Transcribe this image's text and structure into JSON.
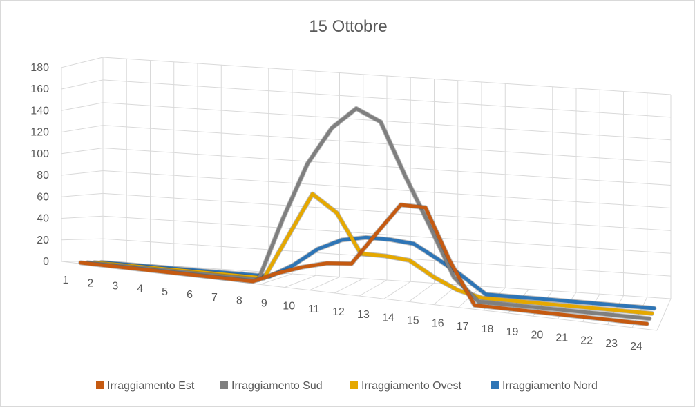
{
  "chart_data": {
    "type": "line",
    "title": "15 Ottobre",
    "x": [
      "1",
      "2",
      "3",
      "4",
      "5",
      "6",
      "7",
      "8",
      "9",
      "10",
      "11",
      "12",
      "13",
      "14",
      "15",
      "16",
      "17",
      "18",
      "19",
      "20",
      "21",
      "22",
      "23",
      "24"
    ],
    "y_ticks": [
      "0",
      "20",
      "40",
      "60",
      "80",
      "100",
      "120",
      "140",
      "160",
      "180"
    ],
    "ylim": [
      0,
      180
    ],
    "grid": true,
    "legend_position": "bottom",
    "series": [
      {
        "name": "Irraggiamento Est",
        "color": "#c55a11",
        "values": [
          0,
          0,
          0,
          0,
          0,
          0,
          0,
          0,
          10,
          18,
          24,
          26,
          56,
          85,
          85,
          38,
          0,
          0,
          0,
          0,
          0,
          0,
          0,
          0
        ]
      },
      {
        "name": "Irraggiamento Sud",
        "color": "#7f7f7f",
        "values": [
          0,
          0,
          0,
          0,
          0,
          0,
          0,
          0,
          58,
          110,
          145,
          165,
          155,
          108,
          65,
          20,
          0,
          0,
          0,
          0,
          0,
          0,
          0,
          0
        ]
      },
      {
        "name": "Irraggiamento Ovest",
        "color": "#e5a800",
        "values": [
          0,
          0,
          0,
          0,
          0,
          0,
          0,
          0,
          40,
          80,
          65,
          30,
          30,
          28,
          15,
          5,
          0,
          0,
          0,
          0,
          0,
          0,
          0,
          0
        ]
      },
      {
        "name": "Irraggiamento Nord",
        "color": "#2e75b6",
        "values": [
          0,
          0,
          0,
          0,
          0,
          0,
          0,
          0,
          12,
          28,
          38,
          42,
          42,
          40,
          28,
          15,
          0,
          0,
          0,
          0,
          0,
          0,
          0,
          0
        ]
      }
    ]
  }
}
